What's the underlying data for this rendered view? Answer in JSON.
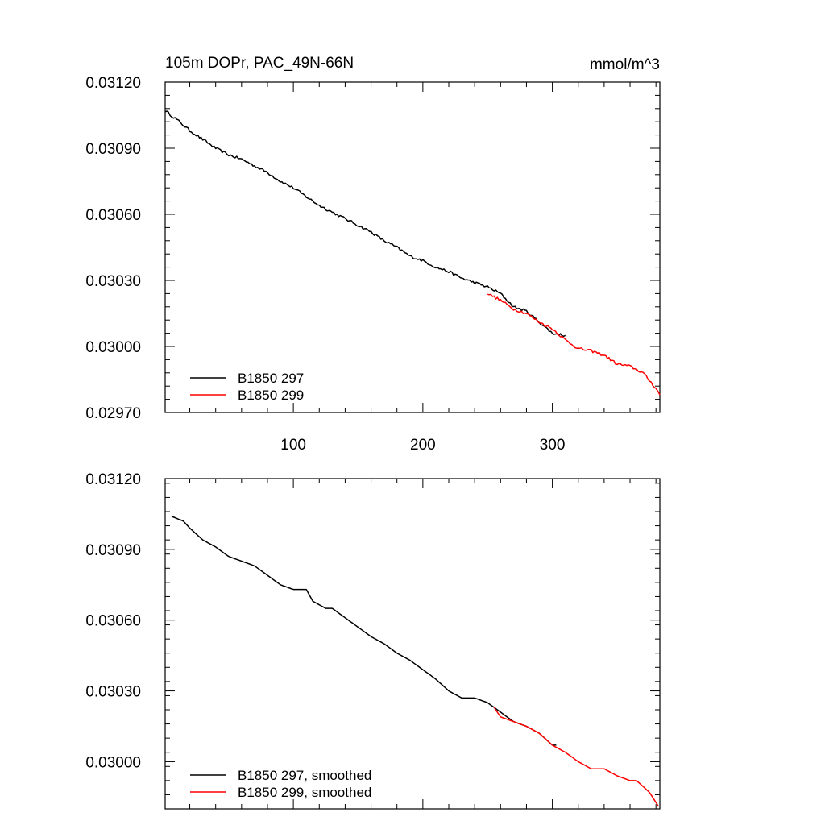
{
  "chart_data": [
    {
      "type": "line",
      "title": "105m DOPr, PAC_49N-66N",
      "units": "mmol/m^3",
      "xlabel": "",
      "ylabel": "",
      "xlim": [
        1,
        383
      ],
      "ylim": [
        0.0297,
        0.0312
      ],
      "yticks": [
        "0.03120",
        "0.03090",
        "0.03060",
        "0.03030",
        "0.03000",
        "0.02970"
      ],
      "xticks": [
        "100",
        "200",
        "300"
      ],
      "legend_position": "bottom-left",
      "grid": false,
      "series": [
        {
          "name": "B1850 297",
          "color": "#000000",
          "x": [
            1,
            10,
            20,
            30,
            40,
            50,
            60,
            70,
            80,
            90,
            100,
            110,
            120,
            130,
            140,
            150,
            160,
            170,
            180,
            190,
            200,
            210,
            220,
            230,
            240,
            250,
            260,
            270,
            280,
            290,
            300,
            310
          ],
          "y": [
            0.03107,
            0.03103,
            0.03098,
            0.03094,
            0.0309,
            0.03087,
            0.03085,
            0.03082,
            0.03079,
            0.03075,
            0.03072,
            0.03068,
            0.03064,
            0.03061,
            0.03058,
            0.03055,
            0.03052,
            0.03048,
            0.03045,
            0.03041,
            0.03039,
            0.03036,
            0.03034,
            0.03031,
            0.03029,
            0.03027,
            0.03024,
            0.03018,
            0.03016,
            0.03011,
            0.03006,
            0.03005
          ]
        },
        {
          "name": "B1850 299",
          "color": "#ff0000",
          "x": [
            250,
            260,
            270,
            280,
            290,
            300,
            310,
            320,
            330,
            340,
            350,
            360,
            370,
            380,
            383
          ],
          "y": [
            0.03024,
            0.03021,
            0.03017,
            0.03015,
            0.03011,
            0.03008,
            0.03003,
            0.02999,
            0.02998,
            0.02996,
            0.02992,
            0.02991,
            0.02988,
            0.02981,
            0.02978
          ]
        }
      ]
    },
    {
      "type": "line",
      "title": "",
      "xlabel": "",
      "ylabel": "",
      "xlim": [
        1,
        383
      ],
      "ylim": [
        0.0298,
        0.0312
      ],
      "yticks": [
        "0.03120",
        "0.03090",
        "0.03060",
        "0.03030",
        "0.03000"
      ],
      "legend_position": "bottom-left",
      "grid": false,
      "series": [
        {
          "name": "B1850 297, smoothed",
          "color": "#000000",
          "x": [
            6,
            15,
            20,
            30,
            40,
            50,
            60,
            70,
            80,
            90,
            100,
            110,
            115,
            125,
            130,
            140,
            150,
            160,
            170,
            180,
            190,
            200,
            210,
            220,
            230,
            240,
            250,
            260,
            270,
            280,
            290,
            300,
            303
          ],
          "y": [
            0.03104,
            0.03102,
            0.03099,
            0.03094,
            0.03091,
            0.03087,
            0.03085,
            0.03083,
            0.03079,
            0.03075,
            0.03073,
            0.03073,
            0.03068,
            0.03065,
            0.03065,
            0.03061,
            0.03057,
            0.03053,
            0.0305,
            0.03046,
            0.03043,
            0.03039,
            0.03035,
            0.0303,
            0.03027,
            0.03027,
            0.03025,
            0.03021,
            0.03017,
            0.03015,
            0.03012,
            0.03007,
            0.03007
          ]
        },
        {
          "name": "B1850 299, smoothed",
          "color": "#ff0000",
          "x": [
            255,
            260,
            270,
            280,
            290,
            300,
            310,
            320,
            330,
            340,
            350,
            360,
            365,
            375,
            382
          ],
          "y": [
            0.03023,
            0.03019,
            0.03017,
            0.03015,
            0.03012,
            0.03007,
            0.03004,
            0.03,
            0.02997,
            0.02997,
            0.02994,
            0.02992,
            0.02992,
            0.02987,
            0.02981
          ]
        }
      ]
    }
  ]
}
